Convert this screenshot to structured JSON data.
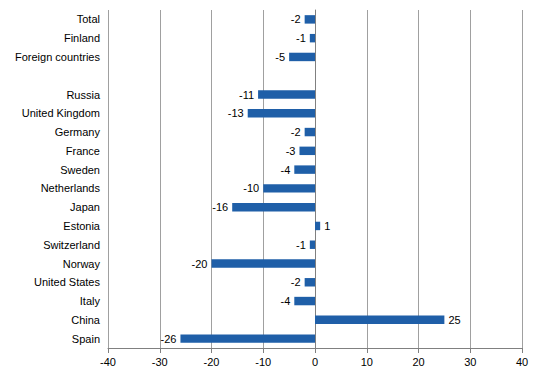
{
  "chart_data": {
    "type": "bar",
    "orientation": "horizontal",
    "categories": [
      "Total",
      "Finland",
      "Foreign countries",
      null,
      "Russia",
      "United Kingdom",
      "Germany",
      "France",
      "Sweden",
      "Netherlands",
      "Japan",
      "Estonia",
      "Switzerland",
      "Norway",
      "United States",
      "Italy",
      "China",
      "Spain"
    ],
    "values": [
      -2,
      -1,
      -5,
      null,
      -11,
      -13,
      -2,
      -3,
      -4,
      -10,
      -16,
      1,
      -1,
      -20,
      -2,
      -4,
      25,
      -26
    ],
    "color": "#1f5fa8",
    "xlim": [
      -40,
      40
    ],
    "xticks": [
      -40,
      -30,
      -20,
      -10,
      0,
      10,
      20,
      30,
      40
    ],
    "grid": true,
    "data_labels": true
  }
}
